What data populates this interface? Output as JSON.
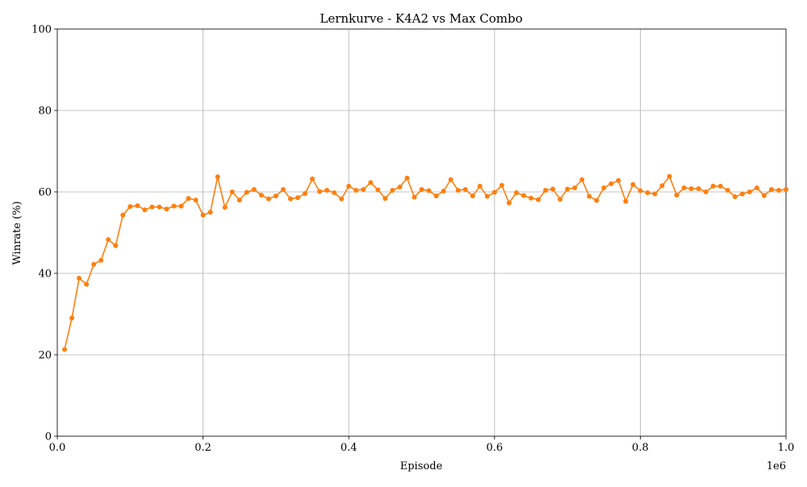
{
  "chart_data": {
    "type": "line",
    "title": "Lernkurve - K4A2 vs Max Combo",
    "xlabel": "Episode",
    "ylabel": "Winrate (%)",
    "x_scale_label": "1e6",
    "xlim": [
      0,
      1.0
    ],
    "ylim": [
      0,
      100
    ],
    "x_ticks": [
      0.0,
      0.2,
      0.4,
      0.6,
      0.8,
      1.0
    ],
    "x_tick_labels": [
      "0.0",
      "0.2",
      "0.4",
      "0.6",
      "0.8",
      "1.0"
    ],
    "y_ticks": [
      0,
      20,
      40,
      60,
      80,
      100
    ],
    "y_tick_labels": [
      "0",
      "20",
      "40",
      "60",
      "80",
      "100"
    ],
    "grid": true,
    "legend": "none",
    "series": [
      {
        "color": "#ff7f0e",
        "x": [
          10000,
          20000,
          30000,
          40000,
          50000,
          60000,
          70000,
          80000,
          90000,
          100000,
          110000,
          120000,
          130000,
          140000,
          150000,
          160000,
          170000,
          180000,
          190000,
          200000,
          210000,
          220000,
          230000,
          240000,
          250000,
          260000,
          270000,
          280000,
          290000,
          300000,
          310000,
          320000,
          330000,
          340000,
          350000,
          360000,
          370000,
          380000,
          390000,
          400000,
          410000,
          420000,
          430000,
          440000,
          450000,
          460000,
          470000,
          480000,
          490000,
          500000,
          510000,
          520000,
          530000,
          540000,
          550000,
          560000,
          570000,
          580000,
          590000,
          600000,
          610000,
          620000,
          630000,
          640000,
          650000,
          660000,
          670000,
          680000,
          690000,
          700000,
          710000,
          720000,
          730000,
          740000,
          750000,
          760000,
          770000,
          780000,
          790000,
          800000,
          810000,
          820000,
          830000,
          840000,
          850000,
          860000,
          870000,
          880000,
          890000,
          900000,
          910000,
          920000,
          930000,
          940000,
          950000,
          960000,
          970000,
          980000,
          990000,
          1000000
        ],
        "y": [
          21.3,
          29.0,
          38.8,
          37.3,
          42.2,
          43.2,
          48.3,
          46.8,
          54.3,
          56.4,
          56.6,
          55.6,
          56.3,
          56.3,
          55.8,
          56.5,
          56.5,
          58.4,
          58.0,
          54.3,
          55.0,
          63.7,
          56.2,
          60.0,
          58.0,
          59.9,
          60.6,
          59.2,
          58.3,
          59.0,
          60.6,
          58.3,
          58.6,
          59.6,
          63.2,
          60.1,
          60.4,
          59.8,
          58.3,
          61.4,
          60.4,
          60.6,
          62.3,
          60.5,
          58.4,
          60.4,
          61.2,
          63.4,
          58.7,
          60.6,
          60.3,
          59.0,
          60.2,
          63.0,
          60.4,
          60.6,
          59.0,
          61.4,
          58.9,
          59.9,
          61.6,
          57.3,
          59.8,
          59.1,
          58.5,
          58.1,
          60.4,
          60.7,
          58.2,
          60.7,
          61.0,
          63.0,
          58.9,
          57.9,
          61.0,
          62.0,
          62.8,
          57.7,
          61.8,
          60.3,
          59.8,
          59.5,
          61.5,
          63.8,
          59.2,
          61.0,
          60.8,
          60.8,
          60.0,
          61.4,
          61.4,
          60.4,
          58.8,
          59.5,
          60.0,
          61.0,
          59.1,
          60.6,
          60.4,
          60.6
        ]
      }
    ]
  }
}
